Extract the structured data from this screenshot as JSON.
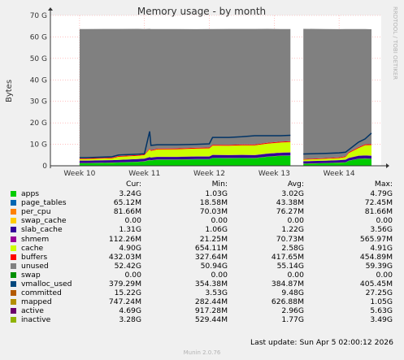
{
  "chart_data": {
    "type": "area",
    "title": "Memory usage - by month",
    "ylabel": "Bytes",
    "ylim": [
      0,
      70
    ],
    "yticks": [
      "0",
      "10 G",
      "20 G",
      "30 G",
      "40 G",
      "50 G",
      "60 G",
      "70 G"
    ],
    "xticks": [
      "Week 10",
      "Week 11",
      "Week 12",
      "Week 13",
      "Week 14"
    ],
    "grid": true,
    "gap": [
      13.25,
      13.45
    ],
    "x": [
      10.0,
      10.1,
      10.5,
      10.6,
      10.9,
      11.0,
      11.08,
      11.1,
      11.2,
      11.5,
      11.8,
      12.0,
      12.05,
      12.3,
      12.5,
      12.7,
      12.9,
      13.1,
      13.25,
      13.45,
      13.8,
      14.0,
      14.1,
      14.15,
      14.3,
      14.4,
      14.5
    ],
    "stack": [
      {
        "name": "apps",
        "color": "#00cc00",
        "values": [
          1.2,
          1.2,
          1.4,
          1.5,
          1.8,
          2.0,
          2.6,
          2.5,
          2.8,
          2.8,
          3.0,
          3.0,
          3.6,
          3.5,
          3.6,
          3.5,
          4.2,
          4.6,
          4.7,
          0.9,
          1.2,
          1.4,
          1.5,
          2.3,
          3.2,
          3.3,
          3.2
        ]
      },
      {
        "name": "page_tables",
        "color": "#0066b3",
        "values": [
          0.03,
          0.03,
          0.03,
          0.04,
          0.04,
          0.04,
          0.04,
          0.05,
          0.05,
          0.05,
          0.05,
          0.05,
          0.05,
          0.05,
          0.05,
          0.06,
          0.06,
          0.06,
          0.06,
          0.02,
          0.03,
          0.03,
          0.03,
          0.04,
          0.06,
          0.07,
          0.06
        ]
      },
      {
        "name": "per_cpu",
        "color": "#ff8000",
        "values": [
          0.07,
          0.07,
          0.07,
          0.07,
          0.07,
          0.07,
          0.07,
          0.07,
          0.07,
          0.07,
          0.07,
          0.07,
          0.07,
          0.07,
          0.07,
          0.07,
          0.07,
          0.07,
          0.07,
          0.07,
          0.07,
          0.07,
          0.07,
          0.07,
          0.08,
          0.08,
          0.08
        ]
      },
      {
        "name": "swap_cache",
        "color": "#ffcc00",
        "values": [
          0,
          0,
          0,
          0,
          0,
          0,
          0,
          0,
          0,
          0,
          0,
          0,
          0,
          0,
          0,
          0,
          0,
          0,
          0,
          0,
          0,
          0,
          0,
          0,
          0,
          0,
          0
        ]
      },
      {
        "name": "slab_cache",
        "color": "#330099",
        "values": [
          1.1,
          1.1,
          1.1,
          1.1,
          1.2,
          1.2,
          1.3,
          1.2,
          1.2,
          1.2,
          1.2,
          1.2,
          1.3,
          1.3,
          1.3,
          1.3,
          1.3,
          1.3,
          1.3,
          1.1,
          1.1,
          1.1,
          1.2,
          1.2,
          1.3,
          1.3,
          1.3
        ]
      },
      {
        "name": "shmem",
        "color": "#990099",
        "values": [
          0.05,
          0.05,
          0.05,
          0.06,
          0.06,
          0.06,
          0.06,
          0.07,
          0.07,
          0.07,
          0.07,
          0.07,
          0.07,
          0.08,
          0.08,
          0.08,
          0.08,
          0.1,
          0.1,
          0.03,
          0.04,
          0.05,
          0.06,
          0.08,
          0.1,
          0.11,
          0.11
        ]
      },
      {
        "name": "cache",
        "color": "#ccff00",
        "values": [
          0.7,
          0.7,
          0.8,
          1.4,
          1.5,
          1.6,
          3.6,
          3.0,
          3.4,
          3.5,
          3.6,
          3.7,
          4.3,
          4.3,
          4.4,
          4.5,
          4.6,
          4.7,
          4.8,
          0.7,
          0.8,
          0.9,
          1.2,
          2.2,
          3.5,
          4.7,
          4.9
        ]
      },
      {
        "name": "buffers",
        "color": "#ff0000",
        "values": [
          0.35,
          0.35,
          0.36,
          0.36,
          0.37,
          0.38,
          0.39,
          0.39,
          0.4,
          0.4,
          0.41,
          0.41,
          0.41,
          0.42,
          0.42,
          0.42,
          0.43,
          0.43,
          0.43,
          0.33,
          0.35,
          0.37,
          0.39,
          0.41,
          0.43,
          0.43,
          0.43
        ]
      },
      {
        "name": "unused",
        "color": "#808080",
        "values": [
          60.2,
          60.2,
          59.9,
          59.2,
          58.7,
          58.3,
          55.7,
          56.4,
          55.7,
          55.6,
          55.2,
          55.2,
          53.9,
          54.0,
          53.8,
          53.8,
          53.0,
          52.4,
          52.2,
          60.6,
          60.1,
          59.7,
          59.2,
          57.4,
          55.0,
          53.7,
          53.5
        ]
      },
      {
        "name": "swap",
        "color": "#008f00",
        "values": [
          0,
          0,
          0,
          0,
          0,
          0,
          0,
          0,
          0,
          0,
          0,
          0,
          0,
          0,
          0,
          0,
          0,
          0,
          0,
          0,
          0,
          0,
          0,
          0,
          0,
          0,
          0
        ]
      }
    ],
    "committed": {
      "name": "committed",
      "color": "#003366",
      "values": [
        3.8,
        3.8,
        4.2,
        5.0,
        5.4,
        5.6,
        16,
        9.5,
        9.8,
        9.8,
        10.0,
        10.2,
        13.2,
        13.2,
        13.5,
        14.0,
        14.0,
        14.0,
        14.2,
        5.5,
        5.8,
        6.0,
        6.3,
        7.5,
        11.0,
        12.5,
        15.2
      ]
    },
    "series": [
      {
        "name": "apps",
        "color": "#00cc00",
        "cur": "3.24G",
        "min": "1.03G",
        "avg": "3.02G",
        "max": "4.79G"
      },
      {
        "name": "page_tables",
        "color": "#0066b3",
        "cur": "65.12M",
        "min": "18.58M",
        "avg": "43.38M",
        "max": "72.45M"
      },
      {
        "name": "per_cpu",
        "color": "#ff8000",
        "cur": "81.66M",
        "min": "70.03M",
        "avg": "76.27M",
        "max": "81.66M"
      },
      {
        "name": "swap_cache",
        "color": "#ffcc00",
        "cur": "0.00",
        "min": "0.00",
        "avg": "0.00",
        "max": "0.00"
      },
      {
        "name": "slab_cache",
        "color": "#330099",
        "cur": "1.31G",
        "min": "1.06G",
        "avg": "1.22G",
        "max": "3.56G"
      },
      {
        "name": "shmem",
        "color": "#990099",
        "cur": "112.26M",
        "min": "21.25M",
        "avg": "70.73M",
        "max": "565.97M"
      },
      {
        "name": "cache",
        "color": "#ccff00",
        "cur": "4.90G",
        "min": "654.11M",
        "avg": "2.58G",
        "max": "4.91G"
      },
      {
        "name": "buffers",
        "color": "#ff0000",
        "cur": "432.03M",
        "min": "327.64M",
        "avg": "417.65M",
        "max": "454.89M"
      },
      {
        "name": "unused",
        "color": "#808080",
        "cur": "52.42G",
        "min": "50.94G",
        "avg": "55.14G",
        "max": "59.39G"
      },
      {
        "name": "swap",
        "color": "#008f00",
        "cur": "0.00",
        "min": "0.00",
        "avg": "0.00",
        "max": "0.00"
      },
      {
        "name": "vmalloc_used",
        "color": "#00487d",
        "cur": "379.29M",
        "min": "354.38M",
        "avg": "384.87M",
        "max": "405.45M"
      },
      {
        "name": "committed",
        "color": "#b35a00",
        "cur": "15.22G",
        "min": "3.53G",
        "avg": "9.48G",
        "max": "27.25G"
      },
      {
        "name": "mapped",
        "color": "#b38f00",
        "cur": "747.24M",
        "min": "282.44M",
        "avg": "626.88M",
        "max": "1.05G"
      },
      {
        "name": "active",
        "color": "#6b006b",
        "cur": "4.69G",
        "min": "917.28M",
        "avg": "2.96G",
        "max": "5.63G"
      },
      {
        "name": "inactive",
        "color": "#8fb300",
        "cur": "3.28G",
        "min": "529.44M",
        "avg": "1.77G",
        "max": "3.49G"
      }
    ]
  },
  "legend_header": {
    "cur": "Cur:",
    "min": "Min:",
    "avg": "Avg:",
    "max": "Max:"
  },
  "footer": {
    "last_update": "Last update: Sun Apr  5 02:00:12 2026"
  },
  "watermark": {
    "rrdtool": "RRDTOOL / TOBI OETIKER",
    "munin": "Munin 2.0.76"
  }
}
